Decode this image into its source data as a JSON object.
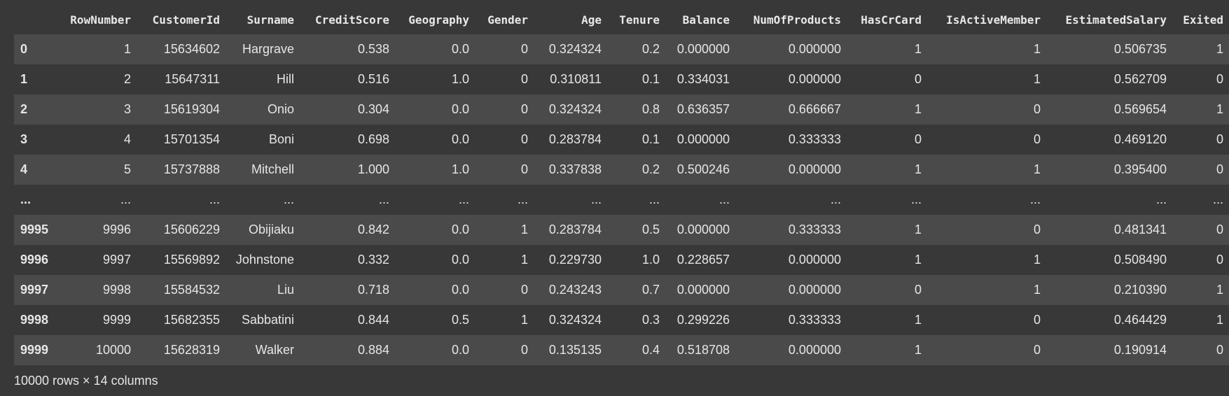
{
  "columns": [
    "RowNumber",
    "CustomerId",
    "Surname",
    "CreditScore",
    "Geography",
    "Gender",
    "Age",
    "Tenure",
    "Balance",
    "NumOfProducts",
    "HasCrCard",
    "IsActiveMember",
    "EstimatedSalary",
    "Exited"
  ],
  "rows": [
    {
      "index": "0",
      "cells": [
        "1",
        "15634602",
        "Hargrave",
        "0.538",
        "0.0",
        "0",
        "0.324324",
        "0.2",
        "0.000000",
        "0.000000",
        "1",
        "1",
        "0.506735",
        "1"
      ]
    },
    {
      "index": "1",
      "cells": [
        "2",
        "15647311",
        "Hill",
        "0.516",
        "1.0",
        "0",
        "0.310811",
        "0.1",
        "0.334031",
        "0.000000",
        "0",
        "1",
        "0.562709",
        "0"
      ]
    },
    {
      "index": "2",
      "cells": [
        "3",
        "15619304",
        "Onio",
        "0.304",
        "0.0",
        "0",
        "0.324324",
        "0.8",
        "0.636357",
        "0.666667",
        "1",
        "0",
        "0.569654",
        "1"
      ]
    },
    {
      "index": "3",
      "cells": [
        "4",
        "15701354",
        "Boni",
        "0.698",
        "0.0",
        "0",
        "0.283784",
        "0.1",
        "0.000000",
        "0.333333",
        "0",
        "0",
        "0.469120",
        "0"
      ]
    },
    {
      "index": "4",
      "cells": [
        "5",
        "15737888",
        "Mitchell",
        "1.000",
        "1.0",
        "0",
        "0.337838",
        "0.2",
        "0.500246",
        "0.000000",
        "1",
        "1",
        "0.395400",
        "0"
      ]
    },
    {
      "index": "...",
      "cells": [
        "...",
        "...",
        "...",
        "...",
        "...",
        "...",
        "...",
        "...",
        "...",
        "...",
        "...",
        "...",
        "...",
        "..."
      ]
    },
    {
      "index": "9995",
      "cells": [
        "9996",
        "15606229",
        "Obijiaku",
        "0.842",
        "0.0",
        "1",
        "0.283784",
        "0.5",
        "0.000000",
        "0.333333",
        "1",
        "0",
        "0.481341",
        "0"
      ]
    },
    {
      "index": "9996",
      "cells": [
        "9997",
        "15569892",
        "Johnstone",
        "0.332",
        "0.0",
        "1",
        "0.229730",
        "1.0",
        "0.228657",
        "0.000000",
        "1",
        "1",
        "0.508490",
        "0"
      ]
    },
    {
      "index": "9997",
      "cells": [
        "9998",
        "15584532",
        "Liu",
        "0.718",
        "0.0",
        "0",
        "0.243243",
        "0.7",
        "0.000000",
        "0.000000",
        "0",
        "1",
        "0.210390",
        "1"
      ]
    },
    {
      "index": "9998",
      "cells": [
        "9999",
        "15682355",
        "Sabbatini",
        "0.844",
        "0.5",
        "1",
        "0.324324",
        "0.3",
        "0.299226",
        "0.333333",
        "1",
        "0",
        "0.464429",
        "1"
      ]
    },
    {
      "index": "9999",
      "cells": [
        "10000",
        "15628319",
        "Walker",
        "0.884",
        "0.0",
        "0",
        "0.135135",
        "0.4",
        "0.518708",
        "0.000000",
        "1",
        "0",
        "0.190914",
        "0"
      ]
    }
  ],
  "caption": "10000 rows × 14 columns",
  "colors": {
    "background": "#383838",
    "row_stripe": "#4a4a4a",
    "text": "#e6e6e6"
  }
}
